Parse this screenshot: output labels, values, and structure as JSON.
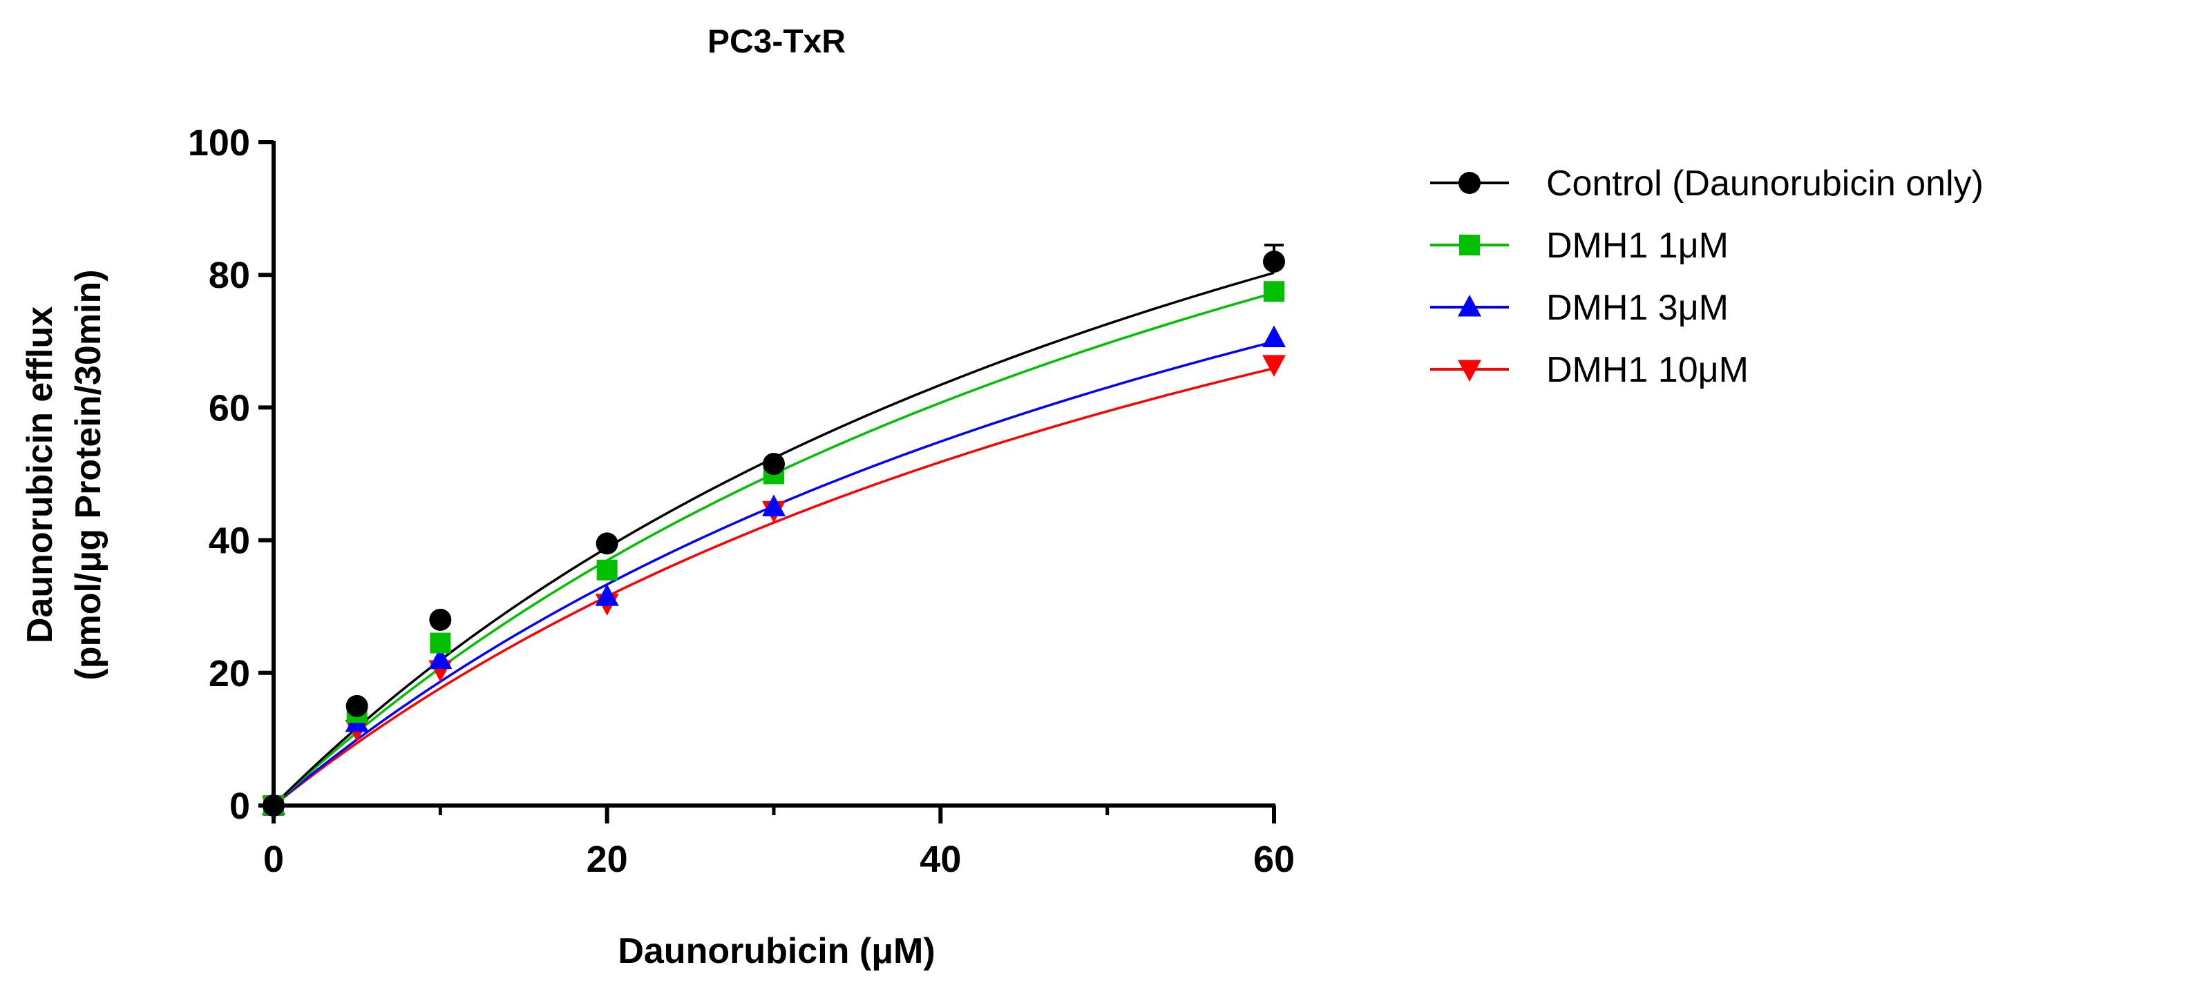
{
  "chart_data": {
    "type": "scatter",
    "title": "PC3-TxR",
    "xlabel": "Daunorubicin (μM)",
    "ylabel_line1": "Daunorubicin efflux",
    "ylabel_line2": "(pmol/μg Protein/30min)",
    "xlim": [
      0,
      60
    ],
    "ylim": [
      0,
      100
    ],
    "x_ticks": [
      0,
      20,
      40,
      60
    ],
    "x_tick_labels": [
      "0",
      "20",
      "40",
      "60"
    ],
    "x_minor_ticks": [
      10,
      30,
      50
    ],
    "y_ticks": [
      0,
      20,
      40,
      60,
      80,
      100
    ],
    "y_tick_labels": [
      "0",
      "20",
      "40",
      "60",
      "80",
      "100"
    ],
    "grid": false,
    "legend_position": "right",
    "fit": "michaelis-menten",
    "x": [
      0,
      5,
      10,
      20,
      30,
      60
    ],
    "series": [
      {
        "name": "Control (Daunorubicin only)",
        "marker": "circle",
        "color": "#000000",
        "values": [
          0,
          15,
          28,
          39.5,
          51.5,
          82
        ],
        "errors": [
          0,
          0.5,
          0.5,
          0.7,
          0.8,
          2.5
        ],
        "fit_vmax": 172,
        "fit_km": 68.5
      },
      {
        "name": "DMH1 1μM",
        "marker": "square",
        "color": "#00c000",
        "values": [
          0,
          14,
          24.5,
          35.5,
          50,
          77.5
        ],
        "errors": [
          0,
          0.5,
          0.5,
          0.6,
          0.7,
          1.0
        ],
        "fit_vmax": 170,
        "fit_km": 72
      },
      {
        "name": "DMH1 3μM",
        "marker": "triangle-up",
        "color": "#0000ff",
        "values": [
          0,
          12.5,
          22,
          31.5,
          45,
          70.5
        ],
        "errors": [
          0,
          0.5,
          0.5,
          0.6,
          0.7,
          1.0
        ],
        "fit_vmax": 155,
        "fit_km": 73
      },
      {
        "name": "DMH1 10μM",
        "marker": "triangle-down",
        "color": "#ff0000",
        "values": [
          0,
          11.5,
          20.5,
          30.5,
          44.5,
          66.5
        ],
        "errors": [
          0,
          0.5,
          0.5,
          0.6,
          0.7,
          1.0
        ],
        "fit_vmax": 145,
        "fit_km": 72
      }
    ]
  }
}
